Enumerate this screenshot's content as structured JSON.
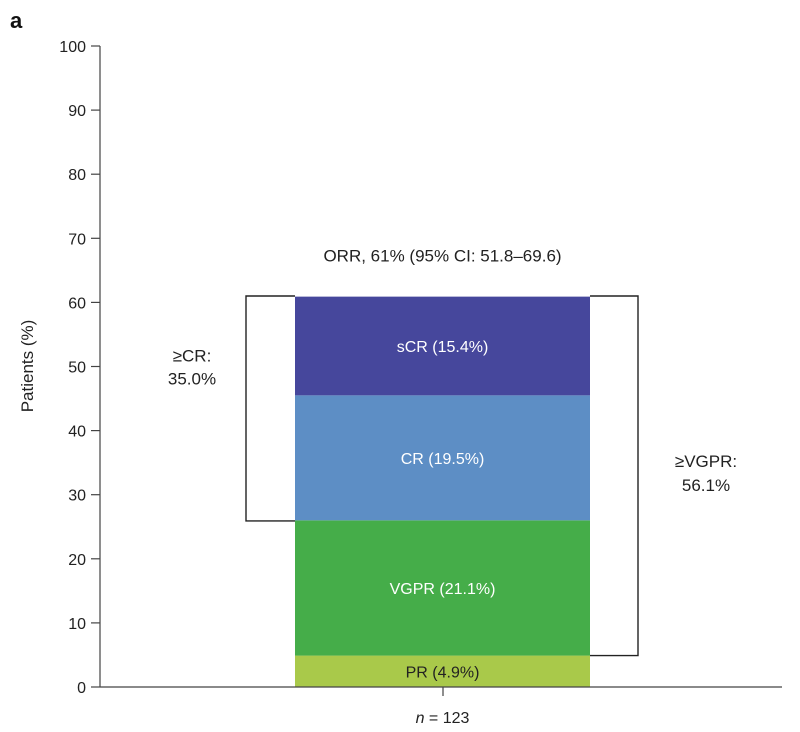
{
  "panel_label": "a",
  "chart_data": {
    "type": "bar",
    "stacked": true,
    "categories": [
      "n = 123"
    ],
    "xtick": {
      "prefix": "n",
      "suffix": " = 123"
    },
    "ylabel": "Patients (%)",
    "ylim": [
      0,
      100
    ],
    "yticks": [
      0,
      10,
      20,
      30,
      40,
      50,
      60,
      70,
      80,
      90,
      100
    ],
    "grid": false,
    "series": [
      {
        "name": "PR",
        "label": "PR (4.9%)",
        "values": [
          4.9
        ],
        "color": "#a9c94a",
        "text_color": "#222222"
      },
      {
        "name": "VGPR",
        "label": "VGPR (21.1%)",
        "values": [
          21.1
        ],
        "color": "#45ad49",
        "text_color": "#ffffff"
      },
      {
        "name": "CR",
        "label": "CR (19.5%)",
        "values": [
          19.5
        ],
        "color": "#5d8ec5",
        "text_color": "#ffffff"
      },
      {
        "name": "sCR",
        "label": "sCR (15.4%)",
        "values": [
          15.4
        ],
        "color": "#46479c",
        "text_color": "#ffffff"
      }
    ],
    "annotations": {
      "orr": "ORR, 61% (95% CI: 51.8–69.6)",
      "ge_cr": {
        "line1": "≥CR:",
        "line2": "35.0%",
        "from": 25.9,
        "to": 61.0
      },
      "ge_vgpr": {
        "line1": "≥VGPR:",
        "line2": "56.1%",
        "from": 4.9,
        "to": 61.0
      }
    }
  }
}
